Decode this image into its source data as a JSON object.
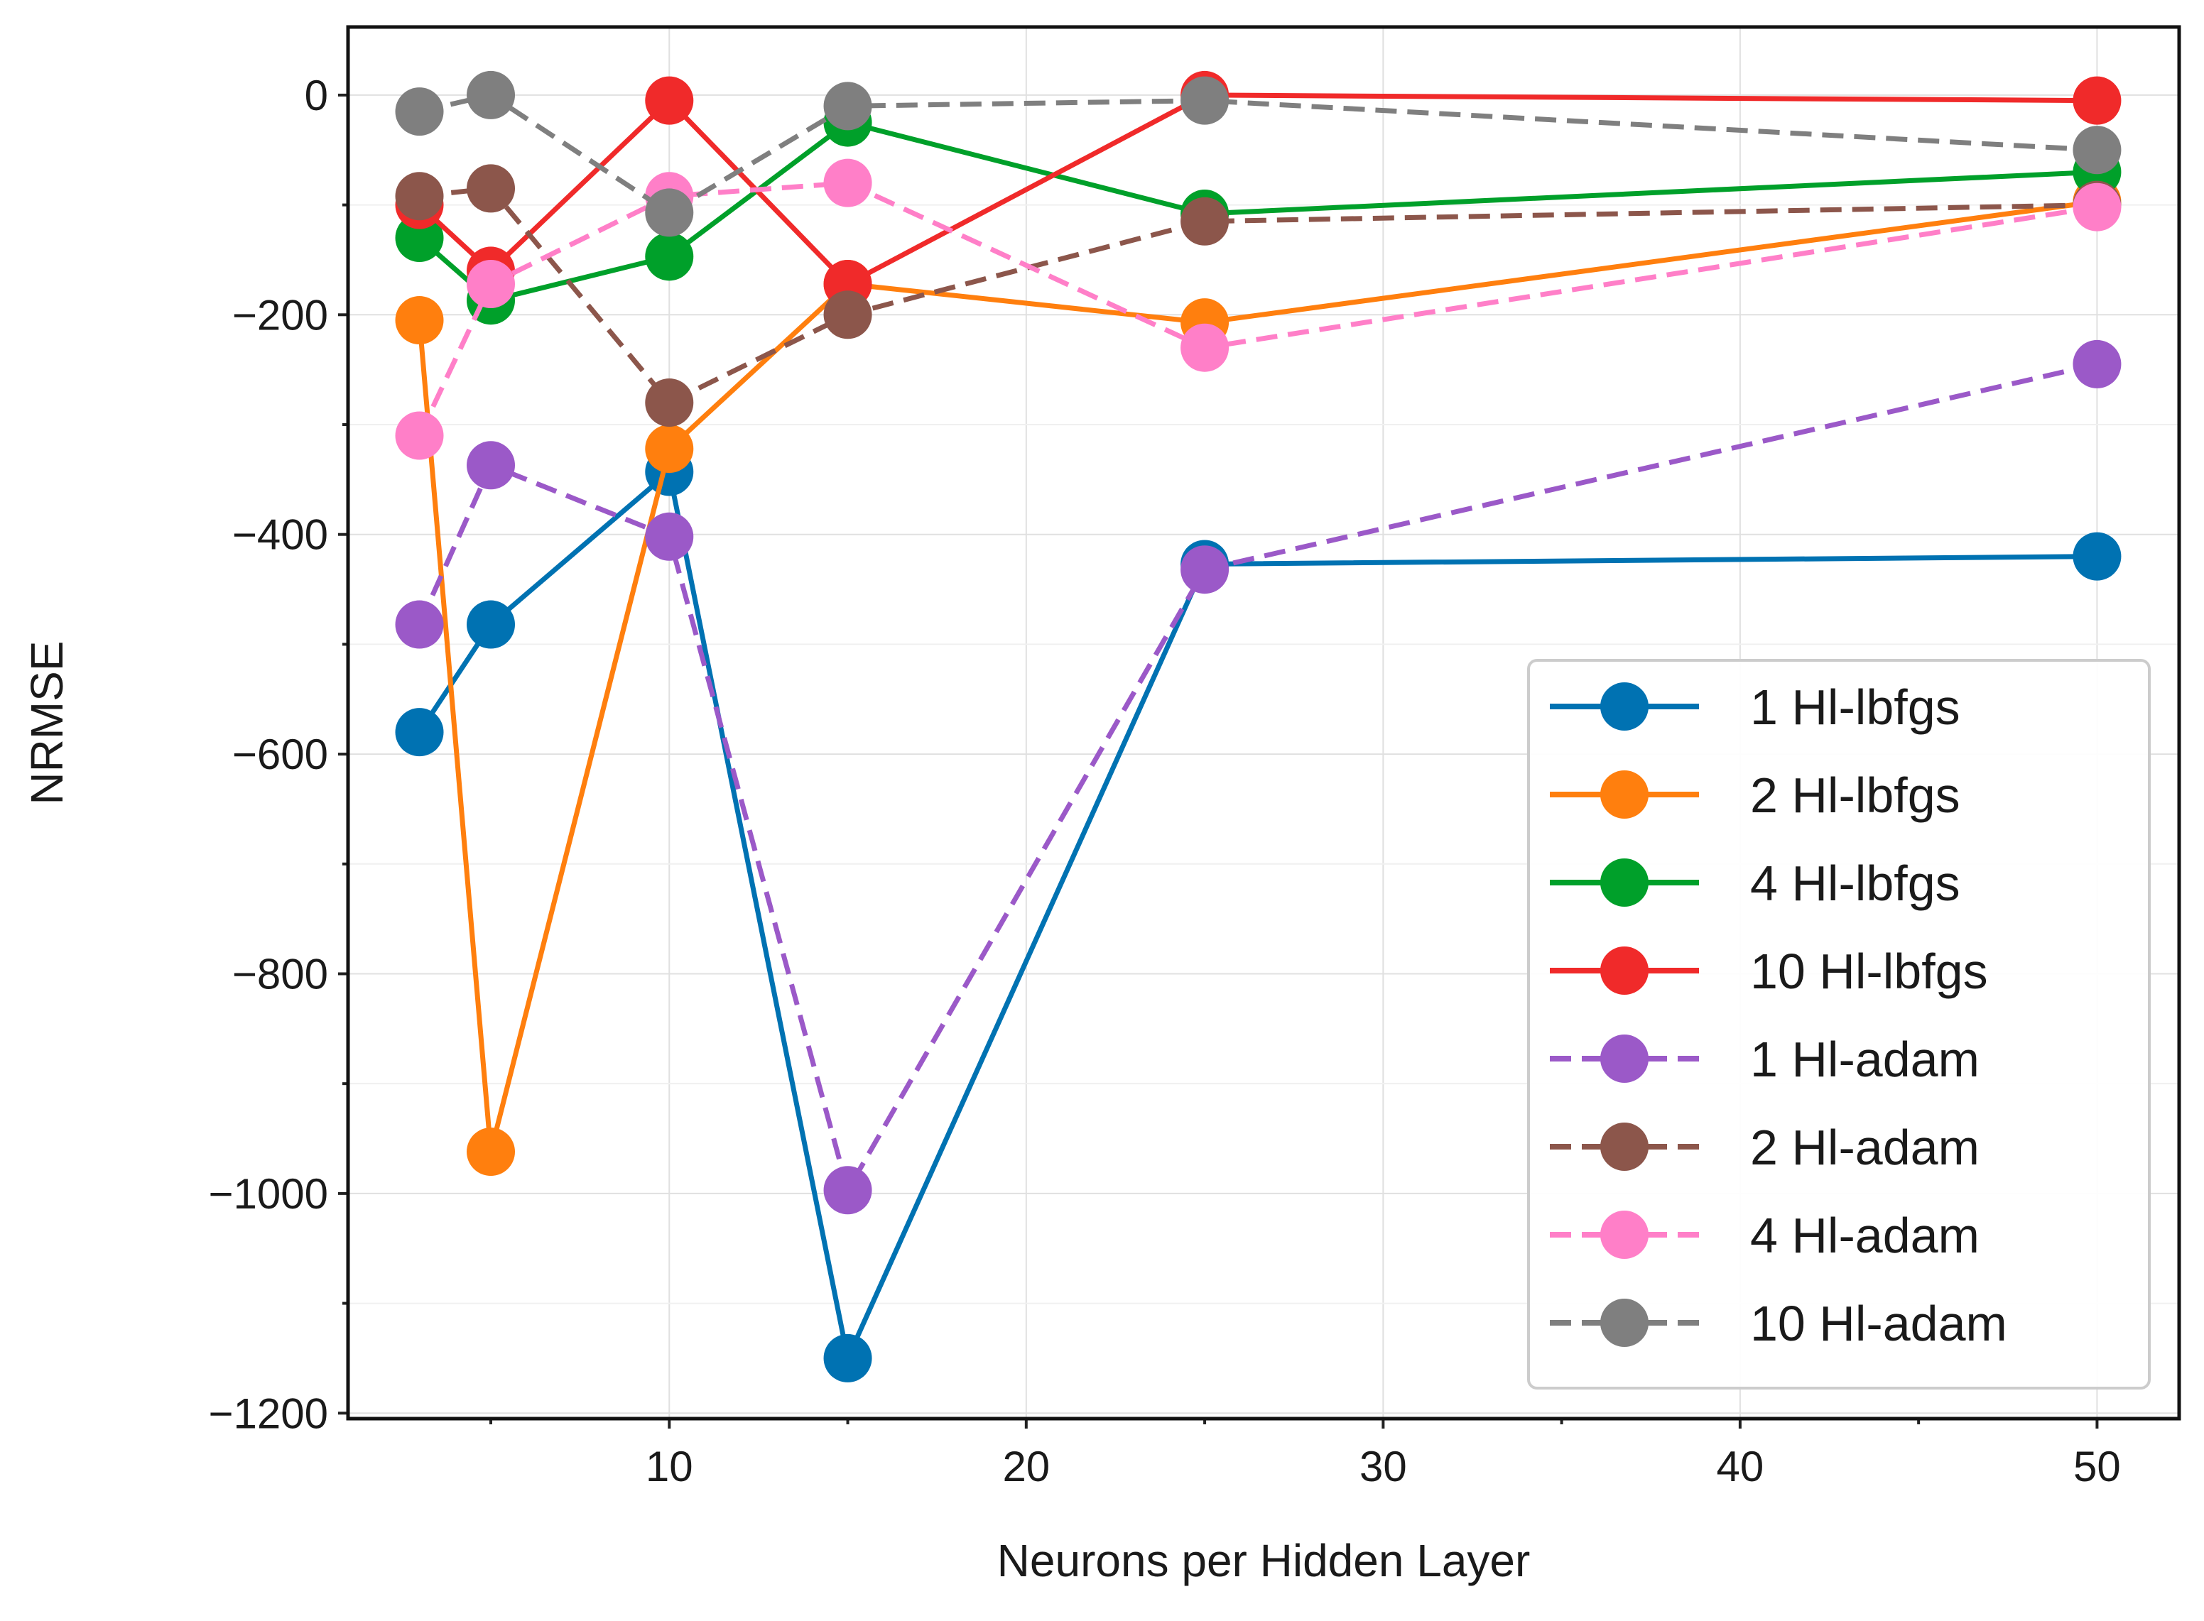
{
  "chart_data": {
    "type": "line",
    "title": "",
    "xlabel": "Neurons per Hidden Layer",
    "ylabel": "NRMSE",
    "xlim": [
      1,
      52.3
    ],
    "ylim": [
      -1205,
      62
    ],
    "x": [
      3,
      5,
      10,
      15,
      25,
      50
    ],
    "xticks": [
      10,
      20,
      30,
      40,
      50
    ],
    "xtick_labels": [
      "10",
      "20",
      "30",
      "40",
      "50"
    ],
    "yticks": [
      0,
      -200,
      -400,
      -600,
      -800,
      -1000,
      -1200
    ],
    "ytick_labels": [
      "0",
      "−200",
      "−400",
      "−600",
      "−800",
      "−1000",
      "−1200"
    ],
    "grid": true,
    "legend_position": "lower-right",
    "series": [
      {
        "name": "1 Hl-lbfgs",
        "color": "#0072b2",
        "style": "solid",
        "values": [
          -580,
          -482,
          -343,
          -1150,
          -427,
          -420
        ]
      },
      {
        "name": "2 Hl-lbfgs",
        "color": "#ff7f0e",
        "style": "solid",
        "values": [
          -205,
          -962,
          -322,
          -172,
          -207,
          -97
        ]
      },
      {
        "name": "4 Hl-lbfgs",
        "color": "#00a02a",
        "style": "solid",
        "values": [
          -130,
          -187,
          -147,
          -25,
          -108,
          -70
        ]
      },
      {
        "name": "10 Hl-lbfgs",
        "color": "#f02a2a",
        "style": "solid",
        "values": [
          -100,
          -160,
          -5,
          -172,
          0,
          -5
        ]
      },
      {
        "name": "1 Hl-adam",
        "color": "#9b59c8",
        "style": "dashed",
        "values": [
          -482,
          -337,
          -402,
          -997,
          -432,
          -245
        ]
      },
      {
        "name": "2 Hl-adam",
        "color": "#8c564b",
        "style": "dashed",
        "values": [
          -92,
          -85,
          -280,
          -200,
          -115,
          -100
        ]
      },
      {
        "name": "4 Hl-adam",
        "color": "#ff7fc8",
        "style": "dashed",
        "values": [
          -310,
          -172,
          -92,
          -80,
          -230,
          -102
        ]
      },
      {
        "name": "10 Hl-adam",
        "color": "#7f7f7f",
        "style": "dashed",
        "values": [
          -15,
          0,
          -107,
          -10,
          -5,
          -50
        ]
      }
    ]
  }
}
